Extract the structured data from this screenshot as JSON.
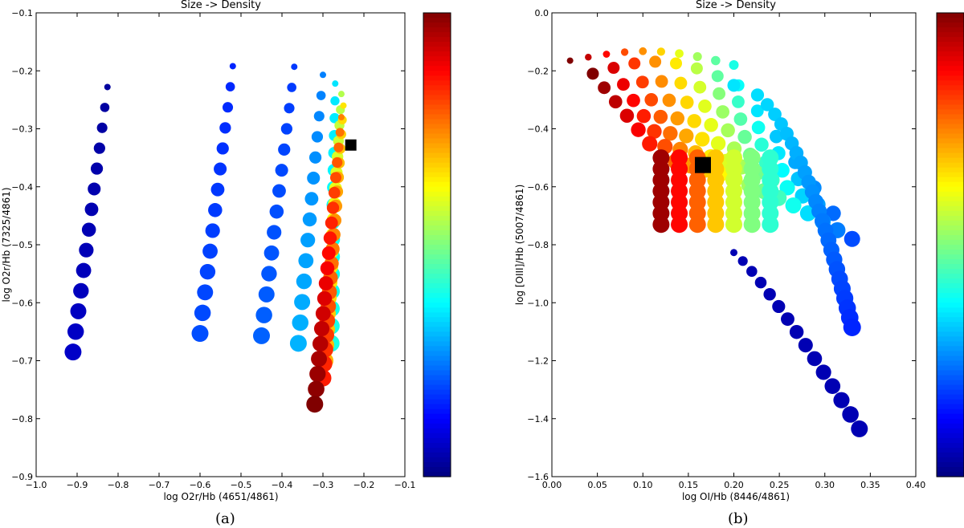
{
  "chart_data": [
    {
      "type": "scatter",
      "panel": "a",
      "title": "Size -> Density",
      "xlabel": "log O2r/Hb (4651/4861)",
      "ylabel": "log O2r/Hb (7325/4861)",
      "xlim": [
        -1.0,
        -0.1
      ],
      "ylim": [
        -0.9,
        -0.1
      ],
      "xticks": [
        "−1.0",
        "−0.9",
        "−0.8",
        "−0.7",
        "−0.6",
        "−0.5",
        "−0.4",
        "−0.3",
        "−0.2",
        "−0.1"
      ],
      "yticks": [
        "−0.9",
        "−0.8",
        "−0.7",
        "−0.6",
        "−0.5",
        "−0.4",
        "−0.3",
        "−0.2",
        "−0.1"
      ],
      "colorbar": true,
      "colormap": "jet",
      "grid": false,
      "marker_note": "point colour encodes the colourbar value; point size encodes density",
      "tracks": [
        {
          "x0": -0.826,
          "y0": -0.228,
          "x1": -0.91,
          "y1": -0.685,
          "n": 14,
          "c0": 0.03,
          "c1": 0.07
        },
        {
          "x0": -0.52,
          "y0": -0.192,
          "x1": -0.6,
          "y1": -0.653,
          "n": 14,
          "c0": 0.16,
          "c1": 0.2
        },
        {
          "x0": -0.37,
          "y0": -0.193,
          "x1": -0.45,
          "y1": -0.657,
          "n": 14,
          "c0": 0.18,
          "c1": 0.22
        },
        {
          "x0": -0.3,
          "y0": -0.207,
          "x1": -0.36,
          "y1": -0.67,
          "n": 14,
          "c0": 0.25,
          "c1": 0.3
        },
        {
          "x0": -0.27,
          "y0": -0.222,
          "x1": -0.28,
          "y1": -0.67,
          "n": 16,
          "c0": 0.35,
          "c1": 0.4
        },
        {
          "x0": -0.255,
          "y0": -0.24,
          "x1": -0.295,
          "y1": -0.7,
          "n": 18,
          "c0": 0.55,
          "c1": 0.7
        },
        {
          "x0": -0.25,
          "y0": -0.26,
          "x1": -0.3,
          "y1": -0.73,
          "n": 20,
          "c0": 0.65,
          "c1": 0.85
        },
        {
          "x0": -0.255,
          "y0": -0.28,
          "x1": -0.32,
          "y1": -0.775,
          "n": 20,
          "c0": 0.75,
          "c1": 1.0
        }
      ],
      "marker": {
        "x": -0.232,
        "y": -0.328,
        "shape": "square",
        "color": "#000000"
      }
    },
    {
      "type": "scatter",
      "panel": "b",
      "title": "Size -> Density",
      "xlabel": "log OI/Hb (8446/4861)",
      "ylabel": "log [OIII]/Hb (5007/4861)",
      "xlim": [
        0.0,
        0.4
      ],
      "ylim": [
        -1.6,
        0.0
      ],
      "xticks": [
        "0.00",
        "0.05",
        "0.10",
        "0.15",
        "0.20",
        "0.25",
        "0.30",
        "0.35",
        "0.40"
      ],
      "yticks": [
        "−1.6",
        "−1.4",
        "−1.2",
        "−1.0",
        "−0.8",
        "−0.6",
        "−0.4",
        "−0.2",
        "0.0"
      ],
      "colorbar": true,
      "colormap": "jet",
      "grid": false,
      "marker_note": "point colour encodes the colourbar value; point size encodes density",
      "grid_points": {
        "top_row": {
          "x0": 0.02,
          "y0": -0.165,
          "x1": 0.2,
          "y1": -0.18,
          "n": 10,
          "c0": 1.0,
          "c1": 0.4
        },
        "columns": [
          {
            "x": 0.12,
            "c": 0.97
          },
          {
            "x": 0.14,
            "c": 0.87
          },
          {
            "x": 0.16,
            "c": 0.78
          },
          {
            "x": 0.18,
            "c": 0.68
          },
          {
            "x": 0.2,
            "c": 0.58
          },
          {
            "x": 0.22,
            "c": 0.5
          },
          {
            "x": 0.24,
            "c": 0.42
          }
        ],
        "column_top_shift": 0.02,
        "column_y_top": -0.5,
        "column_y_bottom": -0.73,
        "column_rows": 7,
        "diagonal_rows": 7
      },
      "edge_track": {
        "x0": 0.2,
        "y0": -0.25,
        "x1": 0.33,
        "y1": -1.085,
        "n": 26,
        "c0": 0.35,
        "c1": 0.16
      },
      "low_track": {
        "x0": 0.2,
        "y0": -0.827,
        "x1": 0.338,
        "y1": -1.435,
        "n": 15,
        "c0": 0.05,
        "c1": 0.05
      },
      "marker": {
        "x": 0.166,
        "y": -0.525,
        "shape": "square",
        "color": "#000000"
      }
    }
  ],
  "captions": {
    "a": "(a)",
    "b": "(b)"
  }
}
